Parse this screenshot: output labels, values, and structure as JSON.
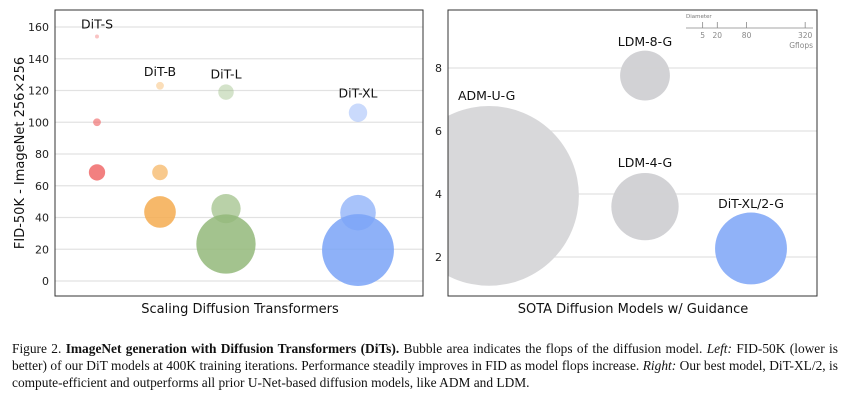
{
  "chart_data": [
    {
      "type": "bubble",
      "xlabel": "Scaling Diffusion Transformers",
      "ylabel": "FID-50K - ImageNet 256×256",
      "ylim": [
        -10,
        170
      ],
      "yticks": [
        0,
        20,
        40,
        60,
        80,
        100,
        120,
        140,
        160
      ],
      "grid": true,
      "bubble_size": "area indicates Gflops",
      "groups": [
        {
          "label": "DiT-S",
          "color": "#f06a6a",
          "points": [
            {
              "fid": 154,
              "gflops": 0.36
            },
            {
              "fid": 100,
              "gflops": 1.4
            },
            {
              "fid": 68.4,
              "gflops": 6.1
            }
          ]
        },
        {
          "label": "DiT-B",
          "color": "#f5ac50",
          "points": [
            {
              "fid": 123,
              "gflops": 1.4
            },
            {
              "fid": 68.4,
              "gflops": 5.6
            },
            {
              "fid": 43.5,
              "gflops": 23
            }
          ]
        },
        {
          "label": "DiT-L",
          "color": "#93b97a",
          "points": [
            {
              "fid": 119,
              "gflops": 5.5
            },
            {
              "fid": 45.6,
              "gflops": 19.7
            },
            {
              "fid": 23.3,
              "gflops": 80.7
            }
          ]
        },
        {
          "label": "DiT-XL",
          "color": "#7aa3f7",
          "points": [
            {
              "fid": 106,
              "gflops": 7.8
            },
            {
              "fid": 43,
              "gflops": 29.1
            },
            {
              "fid": 19.5,
              "gflops": 118.6
            }
          ]
        }
      ]
    },
    {
      "type": "bubble",
      "xlabel": "SOTA Diffusion Models w/ Guidance",
      "ylim": [
        0.8,
        9.9
      ],
      "yticks": [
        2,
        4,
        6,
        8
      ],
      "grid": true,
      "points": [
        {
          "label": "ADM-U-G",
          "fid": 3.94,
          "gflops": 742,
          "color": "#d6d6d8"
        },
        {
          "label": "LDM-8-G",
          "fid": 7.76,
          "gflops": 57,
          "color": "#d0d0d3"
        },
        {
          "label": "LDM-4-G",
          "fid": 3.6,
          "gflops": 104,
          "color": "#d0d0d3"
        },
        {
          "label": "DiT-XL/2-G",
          "fid": 2.27,
          "gflops": 118.6,
          "color": "#8aaef8"
        }
      ],
      "legend": {
        "title": "Diameter",
        "ticks": [
          "5",
          "20",
          "80",
          "320"
        ],
        "unit": "Gflops",
        "placement": "top-right"
      }
    }
  ],
  "caption": {
    "label": "Figure 2.",
    "title": "ImageNet generation with Diffusion Transformers (DiTs).",
    "text1": "Bubble area indicates the flops of the diffusion model.",
    "left_tag": "Left:",
    "text2": "FID-50K (lower is better) of our DiT models at 400K training iterations. Performance steadily improves in FID as model flops increase.",
    "right_tag": "Right:",
    "text3": "Our best model, DiT-XL/2, is compute-efficient and outperforms all prior U-Net-based diffusion models, like ADM and LDM."
  }
}
